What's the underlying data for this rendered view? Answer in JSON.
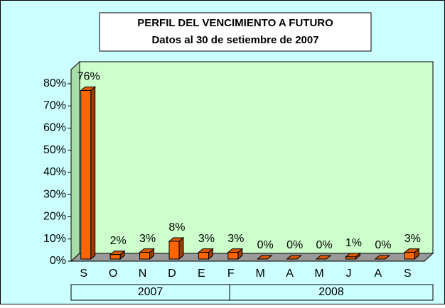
{
  "chart_data": {
    "type": "bar3d",
    "title": "PERFIL DEL VENCIMIENTO A FUTURO",
    "subtitle": "Datos al 30 de setiembre de 2007",
    "categories": [
      "S",
      "O",
      "N",
      "D",
      "E",
      "F",
      "M",
      "A",
      "M",
      "J",
      "A",
      "S"
    ],
    "groups": [
      "2007",
      "2008"
    ],
    "values": [
      76,
      2,
      3,
      8,
      3,
      3,
      0,
      0,
      0,
      1,
      0,
      3
    ],
    "value_labels": [
      "76%",
      "2%",
      "3%",
      "8%",
      "3%",
      "3%",
      "0%",
      "0%",
      "0%",
      "1%",
      "0%",
      "3%"
    ],
    "color": "#ff6600",
    "ylim": [
      0,
      80
    ],
    "yticks": [
      {
        "value": 0,
        "label": "0%"
      },
      {
        "value": 10,
        "label": "10%"
      },
      {
        "value": 20,
        "label": "20%"
      },
      {
        "value": 30,
        "label": "30%"
      },
      {
        "value": 40,
        "label": "40%"
      },
      {
        "value": 50,
        "label": "50%"
      },
      {
        "value": 60,
        "label": "60%"
      },
      {
        "value": 70,
        "label": "70%"
      },
      {
        "value": 80,
        "label": "80%"
      }
    ]
  }
}
